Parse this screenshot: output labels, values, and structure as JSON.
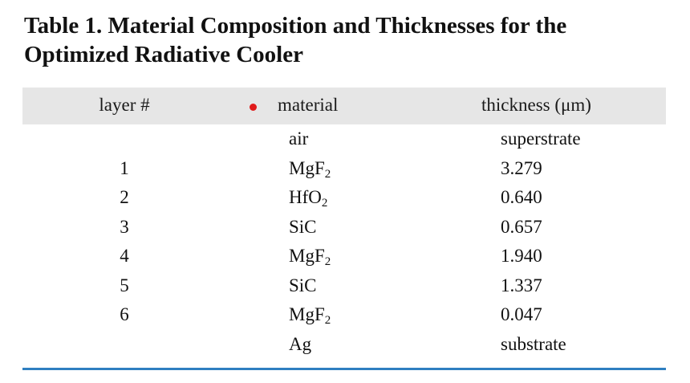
{
  "title": {
    "line1": "Table 1. Material Composition and Thicknesses for the",
    "line2": "Optimized Radiative Cooler"
  },
  "table": {
    "headers": {
      "layer": "layer #",
      "material": "material",
      "thickness": "thickness (μm)"
    },
    "rows": [
      {
        "layer": "",
        "material": "air",
        "material_sub": "",
        "thickness": "superstrate"
      },
      {
        "layer": "1",
        "material": "MgF",
        "material_sub": "2",
        "thickness": "3.279"
      },
      {
        "layer": "2",
        "material": "HfO",
        "material_sub": "2",
        "thickness": "0.640"
      },
      {
        "layer": "3",
        "material": "SiC",
        "material_sub": "",
        "thickness": "0.657"
      },
      {
        "layer": "4",
        "material": "MgF",
        "material_sub": "2",
        "thickness": "1.940"
      },
      {
        "layer": "5",
        "material": "SiC",
        "material_sub": "",
        "thickness": "1.337"
      },
      {
        "layer": "6",
        "material": "MgF",
        "material_sub": "2",
        "thickness": "0.047"
      },
      {
        "layer": "",
        "material": "Ag",
        "material_sub": "",
        "thickness": "substrate"
      }
    ]
  },
  "colors": {
    "header_band": "#e6e6e6",
    "bottom_rule": "#2f7fc1",
    "marker_dot": "#e01b1b"
  }
}
